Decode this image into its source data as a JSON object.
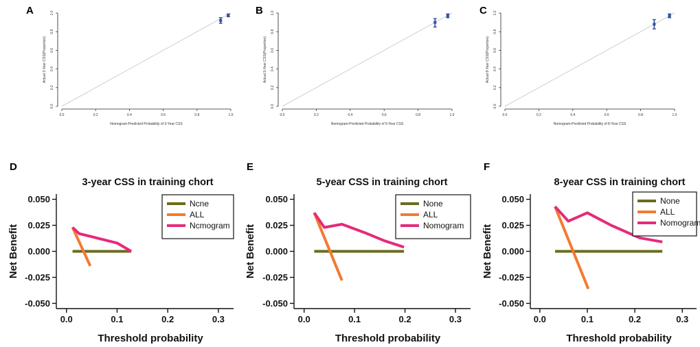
{
  "panel_labels": [
    "A",
    "B",
    "C",
    "D",
    "E",
    "F"
  ],
  "colors": {
    "none": "#6b6b1f",
    "all": "#f47a30",
    "nomogram": "#e52b7a",
    "calibration_point": "#2f4fa0",
    "diagonal": "#cfcfcf"
  },
  "chart_data": [
    {
      "panel": "A",
      "type": "scatter",
      "title": "",
      "xlabel": "Nomogram-Predicted Probability of 3-Year CSS",
      "ylabel": "Actual 3-Year CSS(Proportion)",
      "xlim": [
        0,
        1
      ],
      "ylim": [
        0,
        1
      ],
      "x_ticks": [
        "0.0",
        "0.2",
        "0.4",
        "0.6",
        "0.8",
        "1.0"
      ],
      "y_ticks": [
        "0.0",
        "0.2",
        "0.4",
        "0.6",
        "0.8",
        "1.0"
      ],
      "reference_line": "diagonal",
      "points": [
        {
          "x": 0.94,
          "y": 0.92,
          "low": 0.89,
          "high": 0.95
        },
        {
          "x": 0.985,
          "y": 0.975,
          "low": 0.96,
          "high": 0.99
        }
      ],
      "grid": false
    },
    {
      "panel": "B",
      "type": "scatter",
      "title": "",
      "xlabel": "Nomogram-Predicted Probability of 5-Year CSS",
      "ylabel": "Actual 5-Year CSS(Proportion)",
      "xlim": [
        0,
        1
      ],
      "ylim": [
        0,
        1
      ],
      "x_ticks": [
        "0.0",
        "0.2",
        "0.4",
        "0.6",
        "0.8",
        "1.0"
      ],
      "y_ticks": [
        "0.0",
        "0.2",
        "0.4",
        "0.6",
        "0.8",
        "1.0"
      ],
      "reference_line": "diagonal",
      "points": [
        {
          "x": 0.9,
          "y": 0.9,
          "low": 0.85,
          "high": 0.94
        },
        {
          "x": 0.975,
          "y": 0.97,
          "low": 0.95,
          "high": 0.99
        }
      ],
      "grid": false
    },
    {
      "panel": "C",
      "type": "scatter",
      "title": "",
      "xlabel": "Nomogram-Predicted Probability of 8-Year CSS",
      "ylabel": "Actual 8-Year CSS(Proportion)",
      "xlim": [
        0,
        1
      ],
      "ylim": [
        0,
        1
      ],
      "x_ticks": [
        "0.0",
        "0.2",
        "0.4",
        "0.6",
        "0.8",
        "1.0"
      ],
      "y_ticks": [
        "0.0",
        "0.2",
        "0.4",
        "0.6",
        "0.8",
        "1.0"
      ],
      "reference_line": "diagonal",
      "points": [
        {
          "x": 0.88,
          "y": 0.88,
          "low": 0.83,
          "high": 0.93
        },
        {
          "x": 0.97,
          "y": 0.97,
          "low": 0.95,
          "high": 0.99
        }
      ],
      "grid": false
    },
    {
      "panel": "D",
      "type": "line",
      "title": "3-year CSS in training chort",
      "xlabel": "Threshold probability",
      "ylabel": "Net Benefit",
      "xlim": [
        -0.02,
        0.33
      ],
      "ylim": [
        -0.055,
        0.055
      ],
      "x_ticks": [
        "0.0",
        "0.1",
        "0.2",
        "0.3"
      ],
      "y_ticks": [
        "0.050",
        "0.025",
        "0.000",
        "-0.025",
        "-0.050"
      ],
      "legend_position": "top-right",
      "series": [
        {
          "name": "Ncne",
          "key": "none",
          "points": [
            [
              0.012,
              0.0
            ],
            [
              0.128,
              0.0
            ]
          ]
        },
        {
          "name": "ALL",
          "key": "all",
          "points": [
            [
              0.012,
              0.023
            ],
            [
              0.047,
              -0.014
            ]
          ]
        },
        {
          "name": "Ncmogram",
          "key": "nomogram",
          "points": [
            [
              0.012,
              0.023
            ],
            [
              0.025,
              0.017
            ],
            [
              0.05,
              0.014
            ],
            [
              0.075,
              0.011
            ],
            [
              0.1,
              0.008
            ],
            [
              0.128,
              0.0
            ]
          ]
        }
      ],
      "grid": false
    },
    {
      "panel": "E",
      "type": "line",
      "title": "5-year CSS in training chort",
      "xlabel": "Threshold probability",
      "ylabel": "Net Benefit",
      "xlim": [
        -0.02,
        0.33
      ],
      "ylim": [
        -0.055,
        0.055
      ],
      "x_ticks": [
        "0.0",
        "0.1",
        "0.2",
        "0.3"
      ],
      "y_ticks": [
        "0.050",
        "0.025",
        "0.000",
        "-0.025",
        "-0.050"
      ],
      "legend_position": "top-right",
      "series": [
        {
          "name": "None",
          "key": "none",
          "points": [
            [
              0.02,
              0.0
            ],
            [
              0.198,
              0.0
            ]
          ]
        },
        {
          "name": "ALL",
          "key": "all",
          "points": [
            [
              0.02,
              0.037
            ],
            [
              0.075,
              -0.028
            ]
          ]
        },
        {
          "name": "Nomogram",
          "key": "nomogram",
          "points": [
            [
              0.02,
              0.037
            ],
            [
              0.04,
              0.023
            ],
            [
              0.075,
              0.026
            ],
            [
              0.12,
              0.018
            ],
            [
              0.16,
              0.01
            ],
            [
              0.198,
              0.004
            ]
          ]
        }
      ],
      "grid": false
    },
    {
      "panel": "F",
      "type": "line",
      "title": "8-year CSS in training chort",
      "xlabel": "Threshold probability",
      "ylabel": "Net Benefit",
      "xlim": [
        -0.02,
        0.33
      ],
      "ylim": [
        -0.055,
        0.055
      ],
      "x_ticks": [
        "0.0",
        "0.1",
        "0.2",
        "0.3"
      ],
      "y_ticks": [
        "0.050",
        "0.025",
        "0.000",
        "-0.025",
        "-0.050"
      ],
      "legend_position": "top-right",
      "series": [
        {
          "name": "None",
          "key": "none",
          "points": [
            [
              0.032,
              0.0
            ],
            [
              0.258,
              0.0
            ]
          ]
        },
        {
          "name": "ALL",
          "key": "all",
          "points": [
            [
              0.032,
              0.043
            ],
            [
              0.102,
              -0.036
            ]
          ]
        },
        {
          "name": "Nomogram",
          "key": "nomogram",
          "points": [
            [
              0.032,
              0.043
            ],
            [
              0.06,
              0.029
            ],
            [
              0.08,
              0.033
            ],
            [
              0.1,
              0.037
            ],
            [
              0.15,
              0.025
            ],
            [
              0.21,
              0.013
            ],
            [
              0.258,
              0.009
            ]
          ]
        }
      ],
      "grid": false
    }
  ]
}
